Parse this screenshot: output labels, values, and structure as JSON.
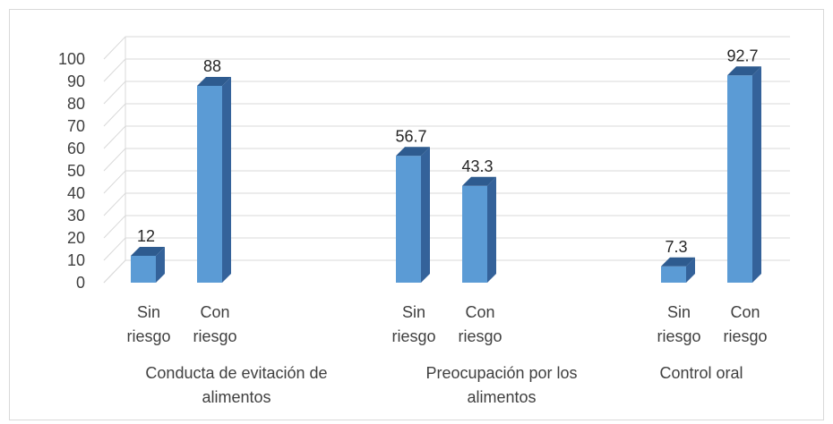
{
  "chart_data": {
    "type": "bar",
    "title": "",
    "xlabel": "",
    "ylabel": "",
    "ylim": [
      0,
      100
    ],
    "yticks": [
      0,
      10,
      20,
      30,
      40,
      50,
      60,
      70,
      80,
      90,
      100
    ],
    "grid": true,
    "three_d": true,
    "legend": "none",
    "bar_color": "#5b9bd5",
    "groups": [
      {
        "label": "Conducta de evitación de alimentos",
        "bars": [
          {
            "label": "Sin riesgo",
            "value": 12,
            "value_label": "12"
          },
          {
            "label": "Con riesgo",
            "value": 88,
            "value_label": "88"
          }
        ]
      },
      {
        "label": "Preocupación por los alimentos",
        "bars": [
          {
            "label": "Sin riesgo",
            "value": 56.7,
            "value_label": "56.7"
          },
          {
            "label": "Con riesgo",
            "value": 43.3,
            "value_label": "43.3"
          }
        ]
      },
      {
        "label": "Control oral",
        "bars": [
          {
            "label": "Sin riesgo",
            "value": 7.3,
            "value_label": "7.3"
          },
          {
            "label": "Con riesgo",
            "value": 92.7,
            "value_label": "92.7"
          }
        ]
      }
    ]
  }
}
